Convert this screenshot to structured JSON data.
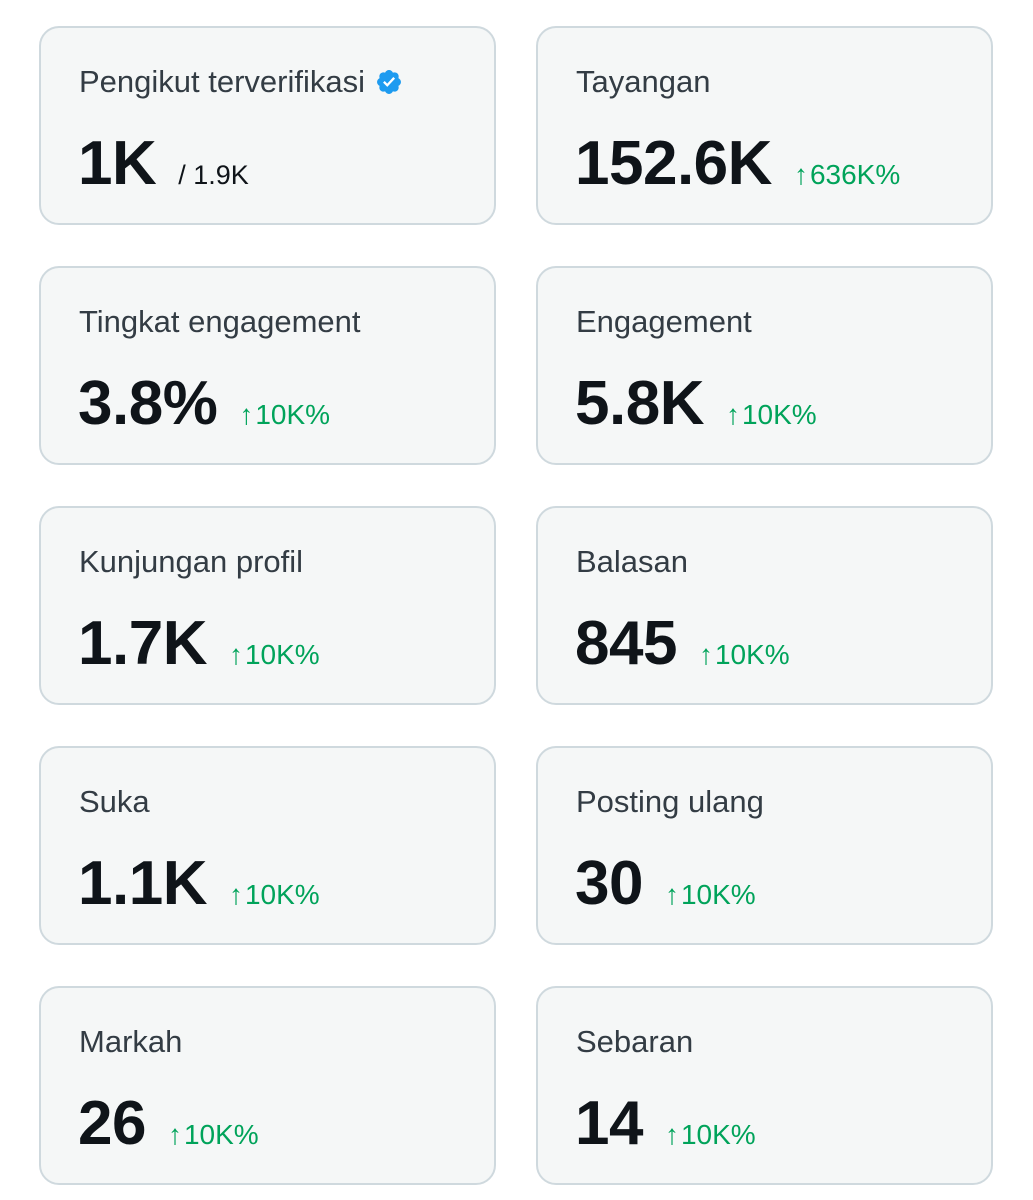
{
  "colors": {
    "card_bg": "#f5f7f7",
    "card_border": "#cfd9de",
    "label": "#333c44",
    "value": "#0f1419",
    "positive": "#00a35a",
    "verified": "#1d9bf0"
  },
  "cards": [
    {
      "label": "Pengikut terverifikasi",
      "value": "1K",
      "sub": "/ 1.9K",
      "icon": "verified-badge-icon"
    },
    {
      "label": "Tayangan",
      "value": "152.6K",
      "arrow": "↑",
      "change": "636K%"
    },
    {
      "label": "Tingkat engagement",
      "value": "3.8%",
      "arrow": "↑",
      "change": "10K%"
    },
    {
      "label": "Engagement",
      "value": "5.8K",
      "arrow": "↑",
      "change": "10K%"
    },
    {
      "label": "Kunjungan profil",
      "value": "1.7K",
      "arrow": "↑",
      "change": "10K%"
    },
    {
      "label": "Balasan",
      "value": "845",
      "arrow": "↑",
      "change": "10K%"
    },
    {
      "label": "Suka",
      "value": "1.1K",
      "arrow": "↑",
      "change": "10K%"
    },
    {
      "label": "Posting ulang",
      "value": "30",
      "arrow": "↑",
      "change": "10K%"
    },
    {
      "label": "Markah",
      "value": "26",
      "arrow": "↑",
      "change": "10K%"
    },
    {
      "label": "Sebaran",
      "value": "14",
      "arrow": "↑",
      "change": "10K%"
    }
  ]
}
